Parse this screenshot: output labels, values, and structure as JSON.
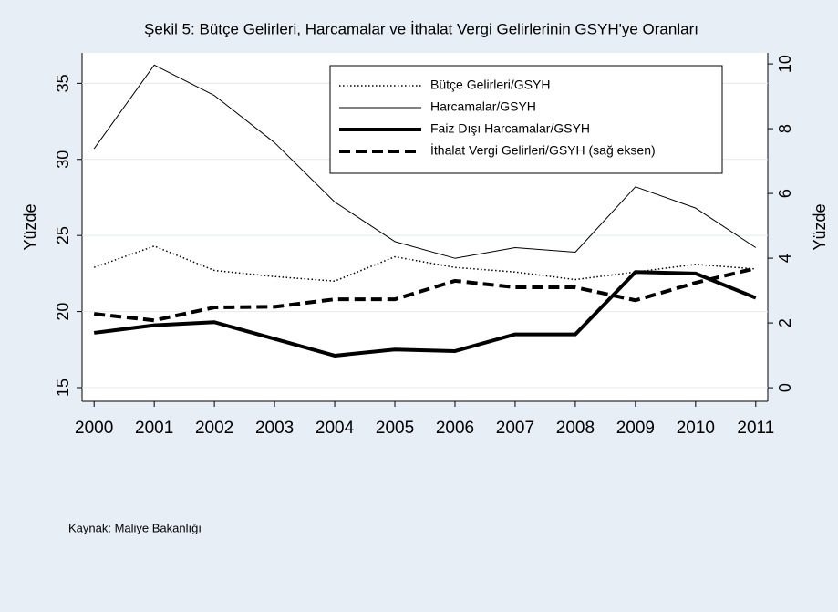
{
  "chart_data": {
    "type": "line",
    "title": "Şekil 5: Bütçe Gelirleri, Harcamalar ve İthalat Vergi Gelirlerinin GSYH'ye Oranları",
    "ylabel": "Yüzde",
    "y2label": "Yüzde",
    "note": "Kaynak: Maliye Bakanlığı",
    "x": [
      2000,
      2001,
      2002,
      2003,
      2004,
      2005,
      2006,
      2007,
      2008,
      2009,
      2010,
      2011
    ],
    "xlim": [
      1999.8,
      2011.2
    ],
    "xticks": [
      2000,
      2001,
      2002,
      2003,
      2004,
      2005,
      2006,
      2007,
      2008,
      2009,
      2010,
      2011
    ],
    "ylim": [
      14.1,
      37.0
    ],
    "yticks": [
      15,
      20,
      25,
      30,
      35
    ],
    "y2lim": [
      -0.42,
      10.34
    ],
    "y2ticks": [
      0,
      2,
      4,
      6,
      8,
      10
    ],
    "grid": true,
    "legend": "top-right",
    "series": [
      {
        "name": "Bütçe Gelirleri/GSYH",
        "color": "#000000",
        "style": "dotted",
        "width": 1.5,
        "values": [
          22.9,
          24.3,
          22.7,
          22.3,
          22.0,
          23.6,
          22.9,
          22.6,
          22.1,
          22.6,
          23.1,
          22.8
        ]
      },
      {
        "name": "Harcamalar/GSYH",
        "color": "#000000",
        "style": "solid",
        "width": 1,
        "values": [
          30.7,
          36.2,
          34.2,
          31.1,
          27.2,
          24.6,
          23.5,
          24.2,
          23.9,
          28.2,
          26.8,
          24.2
        ]
      },
      {
        "name": "Faiz Dışı Harcamalar/GSYH",
        "color": "#000000",
        "style": "solid",
        "width": 4,
        "values": [
          18.6,
          19.1,
          19.3,
          18.2,
          17.1,
          17.5,
          17.4,
          18.5,
          18.5,
          22.6,
          22.5,
          20.9
        ]
      },
      {
        "name": "İthalat Vergi Gelirleri/GSYH (sağ eksen)",
        "color": "#000000",
        "style": "dashed",
        "width": 4,
        "axis": "y2",
        "values": [
          2.28,
          2.08,
          2.48,
          2.5,
          2.73,
          2.73,
          3.3,
          3.1,
          3.1,
          2.7,
          3.24,
          3.69
        ]
      }
    ]
  }
}
